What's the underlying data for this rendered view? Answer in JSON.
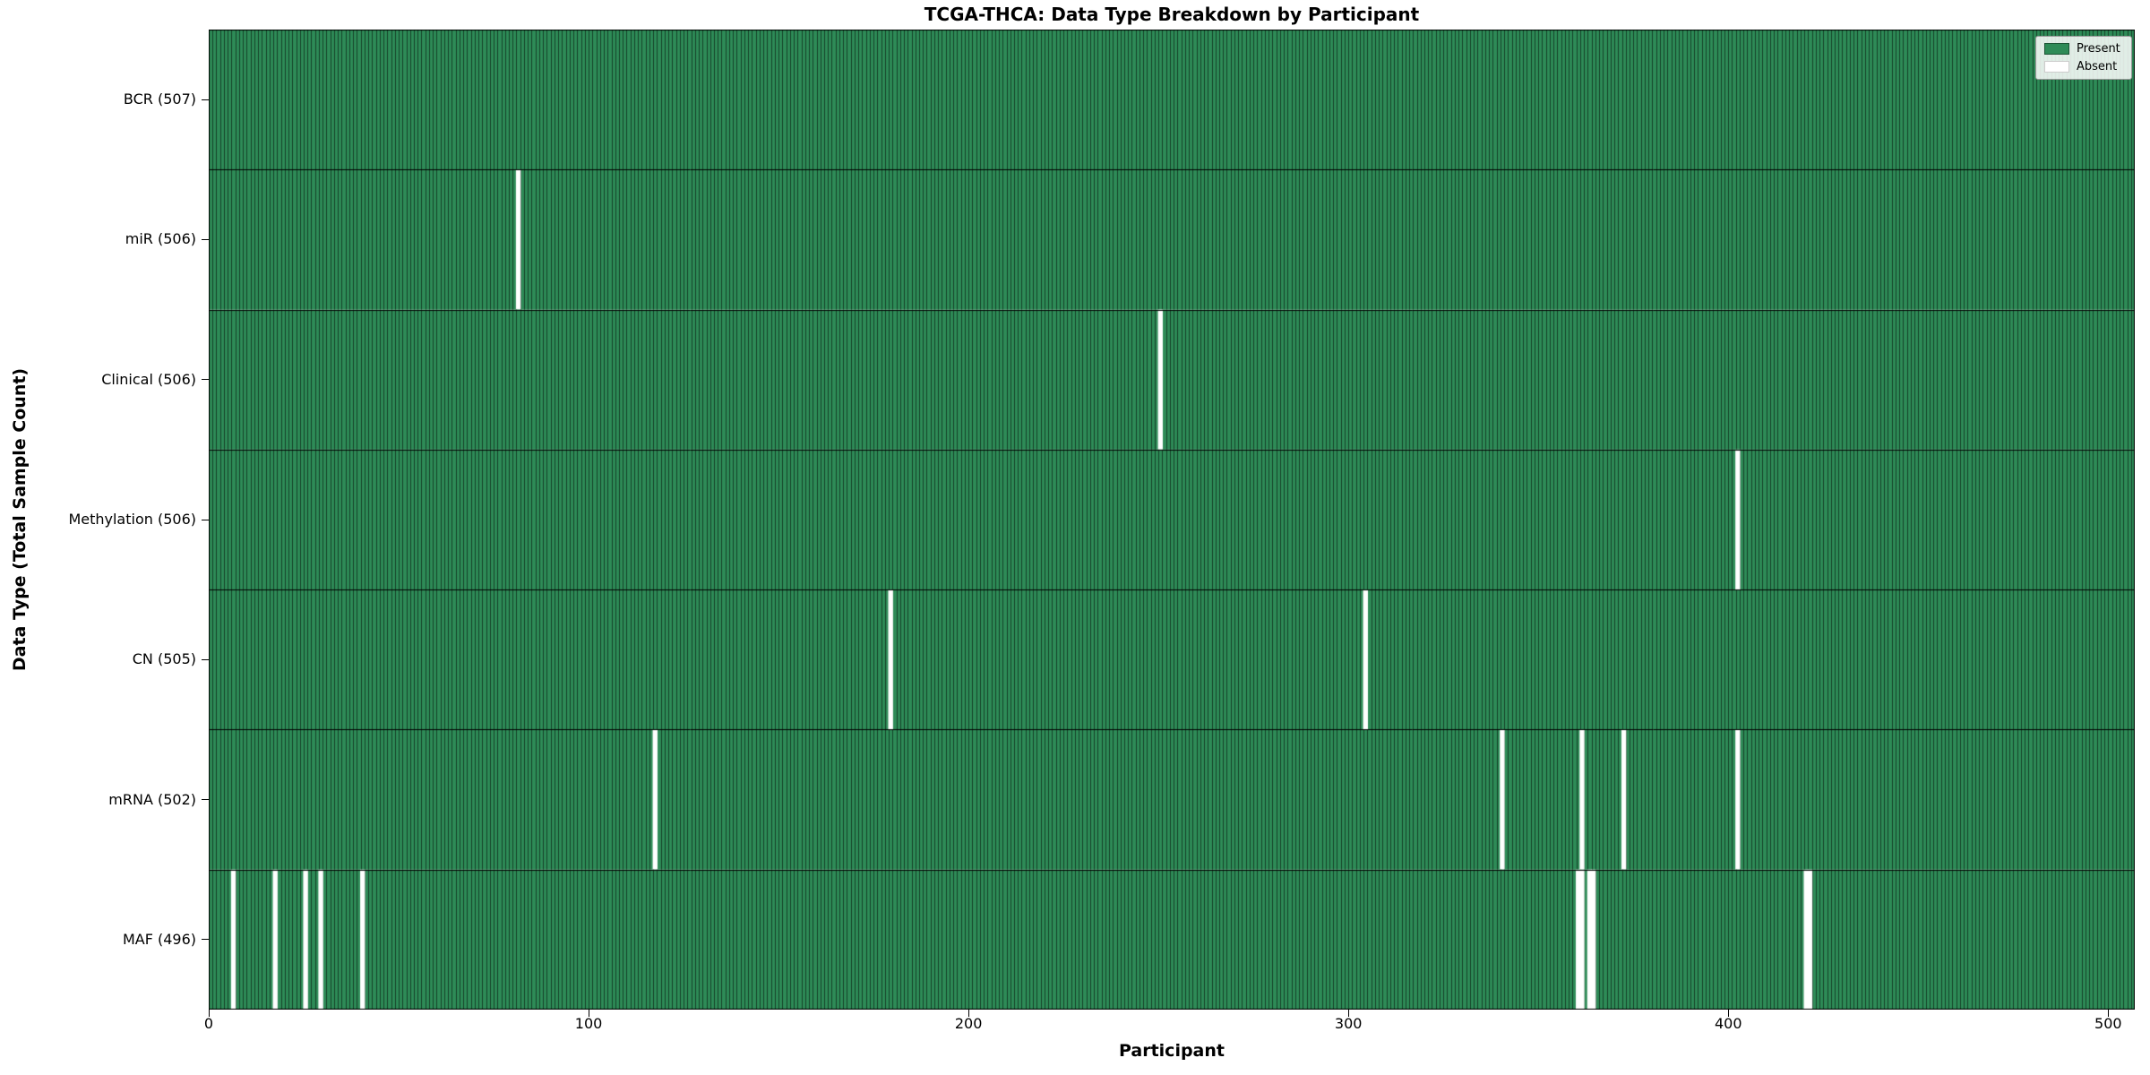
{
  "title": "TCGA-THCA: Data Type Breakdown by Participant",
  "xlabel": "Participant",
  "ylabel": "Data Type (Total Sample Count)",
  "legend": {
    "present_label": "Present",
    "absent_label": "Absent"
  },
  "colors": {
    "present": "#2e8b57",
    "absent": "#ffffff",
    "cell_edge": "rgba(0,0,0,0.6)",
    "row_divider": "#000000",
    "plot_border": "#000000"
  },
  "chart_data": {
    "type": "heatmap",
    "title": "TCGA-THCA: Data Type Breakdown by Participant",
    "xlabel": "Participant",
    "ylabel": "Data Type (Total Sample Count)",
    "legend_position": "upper right",
    "x_ticks": [
      0,
      100,
      200,
      300,
      400,
      500
    ],
    "xlim": [
      0,
      507
    ],
    "n_participants": 507,
    "cell_states": [
      "Present",
      "Absent"
    ],
    "rows": [
      {
        "label": "BCR (507)",
        "data_type": "BCR",
        "total": 507,
        "absent_participants": []
      },
      {
        "label": "miR (506)",
        "data_type": "miR",
        "total": 506,
        "absent_participants": [
          81
        ]
      },
      {
        "label": "Clinical (506)",
        "data_type": "Clinical",
        "total": 506,
        "absent_participants": [
          250
        ]
      },
      {
        "label": "Methylation (506)",
        "data_type": "Methylation",
        "total": 506,
        "absent_participants": [
          402
        ]
      },
      {
        "label": "CN (505)",
        "data_type": "CN",
        "total": 505,
        "absent_participants": [
          179,
          304
        ]
      },
      {
        "label": "mRNA (502)",
        "data_type": "mRNA",
        "total": 502,
        "absent_participants": [
          117,
          340,
          361,
          372,
          402
        ]
      },
      {
        "label": "MAF (496)",
        "data_type": "MAF",
        "total": 496,
        "absent_participants": [
          6,
          17,
          25,
          29,
          40,
          360,
          361,
          363,
          364,
          420,
          421
        ]
      }
    ]
  }
}
